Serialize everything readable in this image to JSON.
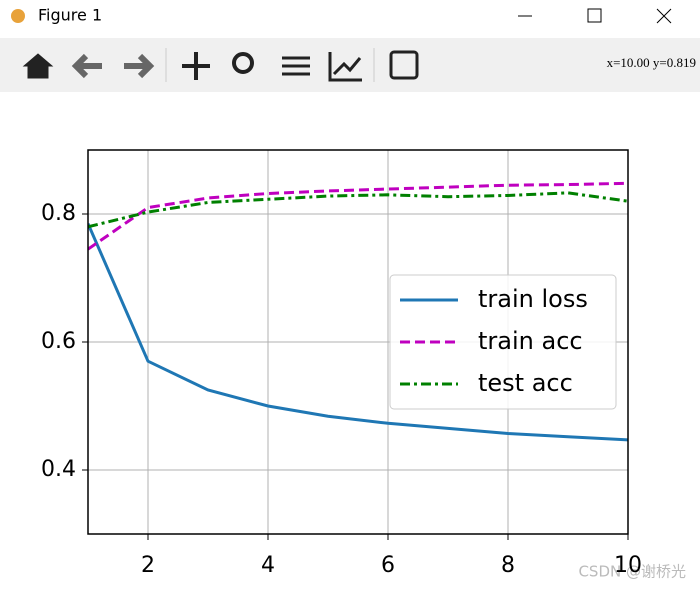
{
  "window": {
    "title": "Figure 1",
    "status": "x=10.00  y=0.819"
  },
  "watermark": "CSDN @谢桥光",
  "chart_data": {
    "type": "line",
    "x": [
      1,
      2,
      3,
      4,
      5,
      6,
      7,
      8,
      9,
      10
    ],
    "series": [
      {
        "name": "train loss",
        "color": "#1f77b4",
        "style": "solid",
        "values": [
          0.785,
          0.57,
          0.525,
          0.5,
          0.484,
          0.473,
          0.465,
          0.457,
          0.452,
          0.447
        ]
      },
      {
        "name": "train acc",
        "color": "#bf00bf",
        "style": "dashed",
        "values": [
          0.745,
          0.81,
          0.825,
          0.832,
          0.836,
          0.839,
          0.842,
          0.845,
          0.846,
          0.848
        ]
      },
      {
        "name": "test acc",
        "color": "#008000",
        "style": "dashdot",
        "values": [
          0.78,
          0.803,
          0.818,
          0.823,
          0.828,
          0.83,
          0.827,
          0.829,
          0.833,
          0.82
        ]
      }
    ],
    "xlim": [
      1,
      10
    ],
    "ylim": [
      0.3,
      0.9
    ],
    "xticks": [
      2,
      4,
      6,
      8,
      10
    ],
    "yticks": [
      0.4,
      0.6,
      0.8
    ],
    "grid": true,
    "legend": "right"
  }
}
